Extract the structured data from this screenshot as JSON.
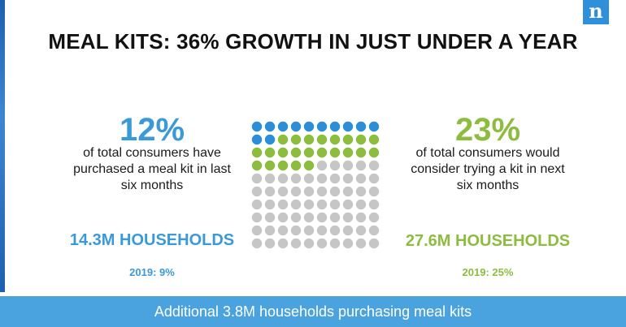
{
  "logo": "n",
  "title": "MEAL KITS: 36% GROWTH IN JUST UNDER A YEAR",
  "left": {
    "percent": "12%",
    "desc_line1": "of total consumers have",
    "desc_line2": "purchased a meal kit in last",
    "desc_line3": "six months",
    "households": "14.3M HOUSEHOLDS",
    "year_note": "2019: 9%"
  },
  "right": {
    "percent": "23%",
    "desc_line1": "of total consumers would",
    "desc_line2": "consider trying a kit in next",
    "desc_line3": "six months",
    "households": "27.6M HOUSEHOLDS",
    "year_note": "2019: 25%"
  },
  "footer": "Additional 3.8M households purchasing meal kits",
  "colors": {
    "blue": "#3a9ad9",
    "green": "#8cbd3f",
    "gray": "#c6c6c6",
    "footer": "#4aa3df"
  },
  "chart_data": {
    "type": "waffle",
    "total": 100,
    "rows": 10,
    "cols": 10,
    "series": [
      {
        "name": "12%",
        "value": 12,
        "color": "#2a8fd6"
      },
      {
        "name": "23%",
        "value": 23,
        "color": "#8cbd3f"
      },
      {
        "name": "",
        "value": 65,
        "color": "#c6c6c6"
      }
    ]
  }
}
